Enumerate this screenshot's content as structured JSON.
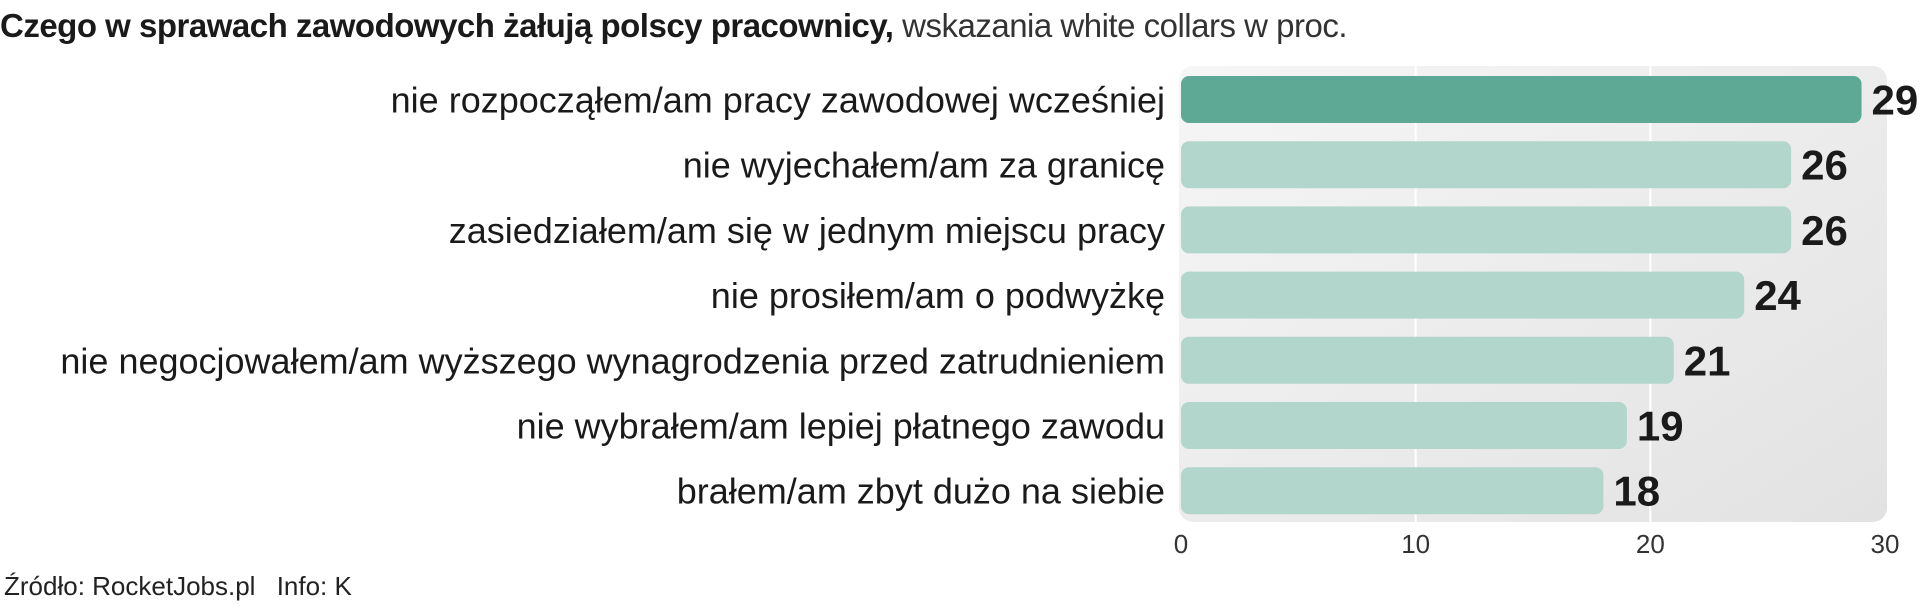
{
  "title": {
    "bold": "Czego w sprawach zawodowych żałują polscy pracownicy,",
    "light": "wskazania white collars w proc."
  },
  "chart_data": {
    "type": "bar",
    "orientation": "horizontal",
    "categories": [
      "nie rozpocząłem/am pracy zawodowej wcześniej",
      "nie wyjechałem/am za granicę",
      "zasiedziałem/am się w jednym miejscu pracy",
      "nie prosiłem/am o podwyżkę",
      "nie negocjowałem/am wyższego wynagrodzenia przed zatrudnieniem",
      "nie wybrałem/am lepiej płatnego zawodu",
      "brałem/am zbyt dużo na siebie"
    ],
    "values": [
      29,
      26,
      26,
      24,
      21,
      19,
      18
    ],
    "value_labels": [
      "29",
      "26",
      "26",
      "24",
      "21",
      "19",
      "18"
    ],
    "xlim": [
      0,
      30
    ],
    "xticks": [
      "0",
      "10",
      "20",
      "30"
    ],
    "highlight_index": 0,
    "colors": {
      "highlight": "#5ea896",
      "bar": "#b3d6cc",
      "plot_bg": "#ececec",
      "grid": "#ffffff"
    },
    "grid": true
  },
  "footer": {
    "source": "Źródło: RocketJobs.pl",
    "info": "Info: K"
  }
}
